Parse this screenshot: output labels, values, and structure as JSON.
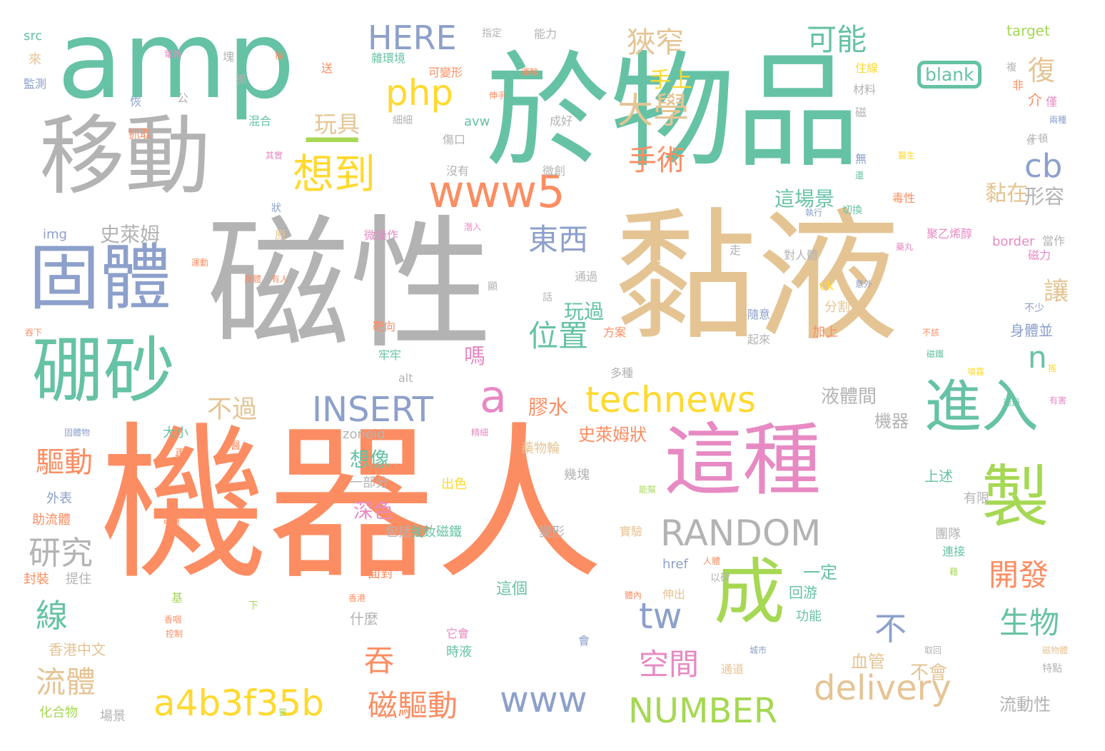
{
  "palette": {
    "orange": "#fc8d62",
    "gray": "#b3b3b3",
    "tan": "#e5c494",
    "teal": "#66c2a5",
    "blue": "#8da0cb",
    "pink": "#e78ac3",
    "green": "#a6d854",
    "yellow": "#ffd92f"
  },
  "words": [
    {
      "text": "機器人",
      "color": "orange",
      "size": 235,
      "vertical": false
    },
    {
      "text": "磁性",
      "color": "gray",
      "size": 200,
      "vertical": false
    },
    {
      "text": "黏液",
      "color": "tan",
      "size": 200,
      "vertical": false
    },
    {
      "text": "於物品",
      "color": "teal",
      "size": 175,
      "vertical": false
    },
    {
      "text": "amp",
      "color": "teal",
      "size": 150,
      "vertical": false
    },
    {
      "text": "移動",
      "color": "gray",
      "size": 120,
      "vertical": false
    },
    {
      "text": "這種",
      "color": "pink",
      "size": 110,
      "vertical": false
    },
    {
      "text": "固體",
      "color": "blue",
      "size": 100,
      "vertical": false
    },
    {
      "text": "硼砂",
      "color": "teal",
      "size": 100,
      "vertical": false
    },
    {
      "text": "成",
      "color": "green",
      "size": 100,
      "vertical": false
    },
    {
      "text": "製",
      "color": "green",
      "size": 95,
      "vertical": false
    },
    {
      "text": "進入",
      "color": "teal",
      "size": 80,
      "vertical": false
    },
    {
      "text": "一",
      "color": "green",
      "size": 80,
      "vertical": false
    },
    {
      "text": "www5",
      "color": "orange",
      "size": 62,
      "vertical": false
    },
    {
      "text": "想到",
      "color": "yellow",
      "size": 58,
      "vertical": false
    },
    {
      "text": "technews",
      "color": "yellow",
      "size": 50,
      "vertical": false
    },
    {
      "text": "a",
      "color": "pink",
      "size": 62,
      "vertical": false
    },
    {
      "text": "a4b3f35b",
      "color": "yellow",
      "size": 50,
      "vertical": false
    },
    {
      "text": "RANDOM",
      "color": "gray",
      "size": 50,
      "vertical": false
    },
    {
      "text": "INSERT",
      "color": "blue",
      "size": 48,
      "vertical": false
    },
    {
      "text": "delivery",
      "color": "tan",
      "size": 48,
      "vertical": false
    },
    {
      "text": "NUMBER",
      "color": "green",
      "size": 48,
      "vertical": false
    },
    {
      "text": "www",
      "color": "blue",
      "size": 50,
      "vertical": false
    },
    {
      "text": "php",
      "color": "yellow",
      "size": 50,
      "vertical": false
    },
    {
      "text": "HERE",
      "color": "blue",
      "size": 46,
      "vertical": false
    },
    {
      "text": "tw",
      "color": "blue",
      "size": 50,
      "vertical": false
    },
    {
      "text": "cb",
      "color": "blue",
      "size": 45,
      "vertical": false
    },
    {
      "text": "n",
      "color": "teal",
      "size": 42,
      "vertical": false
    },
    {
      "text": "blank",
      "color": "teal",
      "size": 25,
      "vertical": false
    },
    {
      "text": "大學",
      "color": "tan",
      "size": 50,
      "vertical": false
    },
    {
      "text": "狹窄",
      "color": "tan",
      "size": 40,
      "vertical": false
    },
    {
      "text": "手術",
      "color": "orange",
      "size": 40,
      "vertical": false
    },
    {
      "text": "可能",
      "color": "teal",
      "size": 42,
      "vertical": false
    },
    {
      "text": "東西",
      "color": "blue",
      "size": 42,
      "vertical": false
    },
    {
      "text": "位置",
      "color": "teal",
      "size": 42,
      "vertical": false
    },
    {
      "text": "空間",
      "color": "pink",
      "size": 42,
      "vertical": false
    },
    {
      "text": "磁驅動",
      "color": "orange",
      "size": 42,
      "vertical": false
    },
    {
      "text": "研究",
      "color": "gray",
      "size": 45,
      "vertical": false
    },
    {
      "text": "流體",
      "color": "tan",
      "size": 42,
      "vertical": false
    },
    {
      "text": "驅動",
      "color": "orange",
      "size": 40,
      "vertical": false
    },
    {
      "text": "開發",
      "color": "orange",
      "size": 42,
      "vertical": false
    },
    {
      "text": "生物",
      "color": "teal",
      "size": 42,
      "vertical": false
    },
    {
      "text": "線",
      "color": "teal",
      "size": 45,
      "vertical": false
    },
    {
      "text": "吞",
      "color": "orange",
      "size": 42,
      "vertical": false
    },
    {
      "text": "不",
      "color": "blue",
      "size": 45,
      "vertical": false
    },
    {
      "text": "不過",
      "color": "tan",
      "size": 35,
      "vertical": false
    },
    {
      "text": "復",
      "color": "tan",
      "size": 38,
      "vertical": false
    },
    {
      "text": "讓",
      "color": "tan",
      "size": 35,
      "vertical": false
    },
    {
      "text": "玩具",
      "color": "tan",
      "size": 32,
      "vertical": false
    },
    {
      "text": "手上",
      "color": "yellow",
      "size": 30,
      "vertical": false
    },
    {
      "text": "黏在",
      "color": "tan",
      "size": 30,
      "vertical": false
    },
    {
      "text": "形容",
      "color": "gray",
      "size": 28,
      "vertical": false
    },
    {
      "text": "這場景",
      "color": "teal",
      "size": 28,
      "vertical": false
    },
    {
      "text": "玩過",
      "color": "teal",
      "size": 28,
      "vertical": false
    },
    {
      "text": "史萊姆",
      "color": "gray",
      "size": 28,
      "vertical": false
    },
    {
      "text": "嗎",
      "color": "pink",
      "size": 30,
      "vertical": false
    },
    {
      "text": "膠水",
      "color": "orange",
      "size": 28,
      "vertical": false
    },
    {
      "text": "想像",
      "color": "teal",
      "size": 28,
      "vertical": false
    },
    {
      "text": "深色",
      "color": "pink",
      "size": 28,
      "vertical": false
    },
    {
      "text": "液體間",
      "color": "gray",
      "size": 26,
      "vertical": false
    },
    {
      "text": "機器",
      "color": "gray",
      "size": 24,
      "vertical": false
    },
    {
      "text": "史萊姆狀",
      "color": "orange",
      "size": 24,
      "vertical": false
    },
    {
      "text": "一定",
      "color": "teal",
      "size": 24,
      "vertical": false
    },
    {
      "text": "不會",
      "color": "tan",
      "size": 26,
      "vertical": false
    },
    {
      "text": "流動性",
      "color": "gray",
      "size": 24,
      "vertical": false
    },
    {
      "text": "血管",
      "color": "tan",
      "size": 24,
      "vertical": false
    },
    {
      "text": "身體並",
      "color": "blue",
      "size": 20,
      "vertical": false
    },
    {
      "text": "介",
      "color": "orange",
      "size": 20,
      "vertical": false
    },
    {
      "text": "回游",
      "color": "teal",
      "size": 20,
      "vertical": false
    },
    {
      "text": "上述",
      "color": "teal",
      "size": 20,
      "vertical": false
    },
    {
      "text": "有限",
      "color": "gray",
      "size": 18,
      "vertical": false
    },
    {
      "text": "團隊",
      "color": "gray",
      "size": 18,
      "vertical": false
    },
    {
      "text": "連接",
      "color": "teal",
      "size": 16,
      "vertical": false
    },
    {
      "text": "功能",
      "color": "teal",
      "size": 18,
      "vertical": false
    },
    {
      "text": "分割",
      "color": "tan",
      "size": 18,
      "vertical": false
    },
    {
      "text": "加上",
      "color": "orange",
      "size": 18,
      "vertical": false
    },
    {
      "text": "這個",
      "color": "teal",
      "size": 22,
      "vertical": false
    },
    {
      "text": "什麼",
      "color": "gray",
      "size": 20,
      "vertical": false
    },
    {
      "text": "一部分",
      "color": "gray",
      "size": 18,
      "vertical": false
    },
    {
      "text": "包括",
      "color": "gray",
      "size": 18,
      "vertical": false
    },
    {
      "text": "強釹磁鐵",
      "color": "teal",
      "size": 18,
      "vertical": false
    },
    {
      "text": "變形",
      "color": "gray",
      "size": 18,
      "vertical": false
    },
    {
      "text": "實驗",
      "color": "tan",
      "size": 16,
      "vertical": false
    },
    {
      "text": "面對",
      "color": "orange",
      "size": 18,
      "vertical": false
    },
    {
      "text": "時液",
      "color": "teal",
      "size": 18,
      "vertical": false
    },
    {
      "text": "它會",
      "color": "pink",
      "size": 16,
      "vertical": false
    },
    {
      "text": "會",
      "color": "blue",
      "size": 16,
      "vertical": false
    },
    {
      "text": "出色",
      "color": "yellow",
      "size": 18,
      "vertical": false
    },
    {
      "text": "藥物輪",
      "color": "tan",
      "size": 18,
      "vertical": false
    },
    {
      "text": "幾塊",
      "color": "gray",
      "size": 18,
      "vertical": false
    },
    {
      "text": "大小",
      "color": "teal",
      "size": 18,
      "vertical": false
    },
    {
      "text": "外表",
      "color": "blue",
      "size": 18,
      "vertical": false
    },
    {
      "text": "助流體",
      "color": "orange",
      "size": 18,
      "vertical": false
    },
    {
      "text": "封裝",
      "color": "orange",
      "size": 18,
      "vertical": false
    },
    {
      "text": "提住",
      "color": "gray",
      "size": 18,
      "vertical": false
    },
    {
      "text": "香港中文",
      "color": "tan",
      "size": 20,
      "vertical": false
    },
    {
      "text": "化合物",
      "color": "green",
      "size": 18,
      "vertical": false
    },
    {
      "text": "場景",
      "color": "gray",
      "size": 18,
      "vertical": false
    },
    {
      "text": "伸出",
      "color": "tan",
      "size": 16,
      "vertical": false
    },
    {
      "text": "以矽",
      "color": "gray",
      "size": 14,
      "vertical": false
    },
    {
      "text": "通道",
      "color": "tan",
      "size": 16,
      "vertical": false
    },
    {
      "text": "起來",
      "color": "gray",
      "size": 16,
      "vertical": false
    },
    {
      "text": "隨意",
      "color": "blue",
      "size": 16,
      "vertical": false
    },
    {
      "text": "對人體",
      "color": "gray",
      "size": 16,
      "vertical": false
    },
    {
      "text": "走",
      "color": "gray",
      "size": 16,
      "vertical": false
    },
    {
      "text": "多種",
      "color": "gray",
      "size": 16,
      "vertical": false
    },
    {
      "text": "方案",
      "color": "orange",
      "size": 16,
      "vertical": false
    },
    {
      "text": "靶向",
      "color": "orange",
      "size": 16,
      "vertical": false
    },
    {
      "text": "牢牢",
      "color": "teal",
      "size": 16,
      "vertical": false
    },
    {
      "text": "微操作",
      "color": "pink",
      "size": 16,
      "vertical": false
    },
    {
      "text": "通過",
      "color": "gray",
      "size": 16,
      "vertical": false
    },
    {
      "text": "原",
      "color": "tan",
      "size": 16,
      "vertical": false
    },
    {
      "text": "微創",
      "color": "gray",
      "size": 16,
      "vertical": false
    },
    {
      "text": "沒有",
      "color": "gray",
      "size": 16,
      "vertical": false
    },
    {
      "text": "傷口",
      "color": "gray",
      "size": 16,
      "vertical": false
    },
    {
      "text": "細細",
      "color": "gray",
      "size": 14,
      "vertical": false
    },
    {
      "text": "混合",
      "color": "teal",
      "size": 16,
      "vertical": false
    },
    {
      "text": "抓取",
      "color": "orange",
      "size": 16,
      "vertical": false
    },
    {
      "text": "抓",
      "color": "gray",
      "size": 16,
      "vertical": false
    },
    {
      "text": "送",
      "color": "orange",
      "size": 16,
      "vertical": false
    },
    {
      "text": "恢",
      "color": "blue",
      "size": 16,
      "vertical": false
    },
    {
      "text": "公",
      "color": "gray",
      "size": 16,
      "vertical": false
    },
    {
      "text": "塊",
      "color": "gray",
      "size": 16,
      "vertical": false
    },
    {
      "text": "來",
      "color": "tan",
      "size": 18,
      "vertical": false
    },
    {
      "text": "監測",
      "color": "blue",
      "size": 16,
      "vertical": false
    },
    {
      "text": "src",
      "color": "teal",
      "size": 18,
      "vertical": false
    },
    {
      "text": "img",
      "color": "blue",
      "size": 18,
      "vertical": false
    },
    {
      "text": "avw",
      "color": "teal",
      "size": 18,
      "vertical": false
    },
    {
      "text": "ck",
      "color": "yellow",
      "size": 18,
      "vertical": false
    },
    {
      "text": "alt",
      "color": "gray",
      "size": 16,
      "vertical": false
    },
    {
      "text": "zoneid",
      "color": "gray",
      "size": 18,
      "vertical": false
    },
    {
      "text": "href",
      "color": "blue",
      "size": 18,
      "vertical": false
    },
    {
      "text": "target",
      "color": "green",
      "size": 20,
      "vertical": false
    },
    {
      "text": "border",
      "color": "pink",
      "size": 18,
      "vertical": false
    },
    {
      "text": "可變形",
      "color": "orange",
      "size": 16,
      "vertical": false
    },
    {
      "text": "雜環境",
      "color": "teal",
      "size": 16,
      "vertical": false
    },
    {
      "text": "能力",
      "color": "gray",
      "size": 16,
      "vertical": false
    },
    {
      "text": "指定",
      "color": "gray",
      "size": 14,
      "vertical": false
    },
    {
      "text": "成好",
      "color": "gray",
      "size": 16,
      "vertical": false
    },
    {
      "text": "材料",
      "color": "gray",
      "size": 16,
      "vertical": false
    },
    {
      "text": "住線",
      "color": "yellow",
      "size": 16,
      "vertical": false
    },
    {
      "text": "磁",
      "color": "gray",
      "size": 16,
      "vertical": false
    },
    {
      "text": "無",
      "color": "blue",
      "size": 16,
      "vertical": false
    },
    {
      "text": "非",
      "color": "orange",
      "size": 16,
      "vertical": false
    },
    {
      "text": "複",
      "color": "gray",
      "size": 14,
      "vertical": false
    },
    {
      "text": "僅",
      "color": "pink",
      "size": 16,
      "vertical": false
    },
    {
      "text": "牛頓",
      "color": "gray",
      "size": 14,
      "vertical": false
    },
    {
      "text": "當作",
      "color": "gray",
      "size": 16,
      "vertical": false
    },
    {
      "text": "聚乙烯醇",
      "color": "pink",
      "size": 16,
      "vertical": false
    },
    {
      "text": "磁力",
      "color": "pink",
      "size": 16,
      "vertical": false
    },
    {
      "text": "不少",
      "color": "blue",
      "size": 14,
      "vertical": false
    },
    {
      "text": "不該",
      "color": "orange",
      "size": 12,
      "vertical": false
    },
    {
      "text": "兩種",
      "color": "blue",
      "size": 12,
      "vertical": false
    },
    {
      "text": "醫生",
      "color": "yellow",
      "size": 12,
      "vertical": false
    },
    {
      "text": "毒性",
      "color": "orange",
      "size": 16,
      "vertical": false
    },
    {
      "text": "修",
      "color": "gray",
      "size": 12,
      "vertical": false
    },
    {
      "text": "切換",
      "color": "teal",
      "size": 14,
      "vertical": false
    },
    {
      "text": "執行",
      "color": "blue",
      "size": 12,
      "vertical": false
    },
    {
      "text": "還",
      "color": "teal",
      "size": 12,
      "vertical": false
    },
    {
      "text": "藥丸",
      "color": "pink",
      "size": 12,
      "vertical": false
    },
    {
      "text": "意外",
      "color": "blue",
      "size": 12,
      "vertical": false
    },
    {
      "text": "磁鐵",
      "color": "teal",
      "size": 12,
      "vertical": false
    },
    {
      "text": "噴霧",
      "color": "yellow",
      "size": 12,
      "vertical": false
    },
    {
      "text": "搖",
      "color": "yellow",
      "size": 12,
      "vertical": false
    },
    {
      "text": "透過",
      "color": "teal",
      "size": 12,
      "vertical": false
    },
    {
      "text": "有害",
      "color": "pink",
      "size": 12,
      "vertical": false
    },
    {
      "text": "藉",
      "color": "green",
      "size": 12,
      "vertical": false
    },
    {
      "text": "取回",
      "color": "gray",
      "size": 12,
      "vertical": false
    },
    {
      "text": "特點",
      "color": "gray",
      "size": 14,
      "vertical": false
    },
    {
      "text": "城市",
      "color": "blue",
      "size": 12,
      "vertical": false
    },
    {
      "text": "磁物體",
      "color": "tan",
      "size": 12,
      "vertical": false
    },
    {
      "text": "顯",
      "color": "gray",
      "size": 14,
      "vertical": false
    },
    {
      "text": "話",
      "color": "gray",
      "size": 14,
      "vertical": false
    },
    {
      "text": "狀",
      "color": "blue",
      "size": 14,
      "vertical": false
    },
    {
      "text": "有人",
      "color": "orange",
      "size": 12,
      "vertical": false
    },
    {
      "text": "身體",
      "color": "orange",
      "size": 12,
      "vertical": false
    },
    {
      "text": "運動",
      "color": "orange",
      "size": 12,
      "vertical": false
    },
    {
      "text": "潛入",
      "color": "pink",
      "size": 12,
      "vertical": false
    },
    {
      "text": "再",
      "color": "orange",
      "size": 16,
      "vertical": false
    },
    {
      "text": "醫",
      "color": "orange",
      "size": 14,
      "vertical": false
    },
    {
      "text": "更",
      "color": "orange",
      "size": 14,
      "vertical": false
    },
    {
      "text": "精細",
      "color": "pink",
      "size": 12,
      "vertical": false
    },
    {
      "text": "能幫",
      "color": "green",
      "size": 12,
      "vertical": false
    },
    {
      "text": "可用",
      "color": "orange",
      "size": 12,
      "vertical": false
    },
    {
      "text": "人體",
      "color": "orange",
      "size": 12,
      "vertical": false
    },
    {
      "text": "體內",
      "color": "orange",
      "size": 12,
      "vertical": false
    },
    {
      "text": "香港",
      "color": "orange",
      "size": 12,
      "vertical": false
    },
    {
      "text": "基",
      "color": "green",
      "size": 16,
      "vertical": false
    },
    {
      "text": "下",
      "color": "green",
      "size": 14,
      "vertical": false
    },
    {
      "text": "香咽",
      "color": "orange",
      "size": 12,
      "vertical": false
    },
    {
      "text": "控制",
      "color": "orange",
      "size": 12,
      "vertical": false
    },
    {
      "text": "固體物",
      "color": "blue",
      "size": 12,
      "vertical": false
    },
    {
      "text": "吞下",
      "color": "orange",
      "size": 12,
      "vertical": false
    },
    {
      "text": "其實",
      "color": "pink",
      "size": 12,
      "vertical": false
    },
    {
      "text": "電路",
      "color": "pink",
      "size": 12,
      "vertical": false
    },
    {
      "text": "運輸",
      "color": "orange",
      "size": 12,
      "vertical": false
    },
    {
      "text": "伸手",
      "color": "orange",
      "size": 12,
      "vertical": false
    },
    {
      "text": "操",
      "color": "orange",
      "size": 12,
      "vertical": false
    },
    {
      "text": "嘗",
      "color": "green",
      "size": 12,
      "vertical": false
    }
  ]
}
